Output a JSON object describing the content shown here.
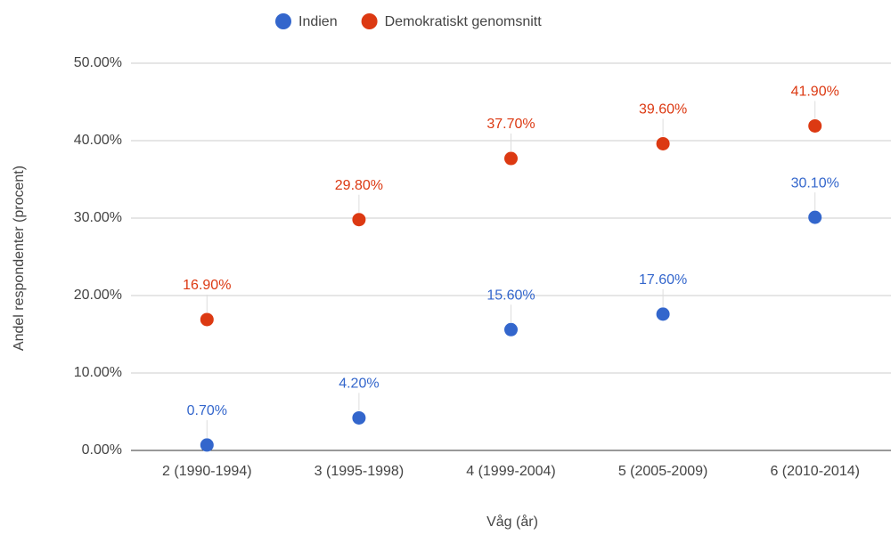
{
  "chart_data": {
    "type": "scatter",
    "categories": [
      "2 (1990-1994)",
      "3 (1995-1998)",
      "4 (1999-2004)",
      "5 (2005-2009)",
      "6 (2010-2014)"
    ],
    "series": [
      {
        "name": "Indien",
        "color": "#3366cc",
        "values": [
          0.7,
          4.2,
          15.6,
          17.6,
          30.1
        ],
        "value_labels": [
          "0.70%",
          "4.20%",
          "15.60%",
          "17.60%",
          "30.10%"
        ]
      },
      {
        "name": "Demokratiskt genomsnitt",
        "color": "#dc3912",
        "values": [
          16.9,
          29.8,
          37.7,
          39.6,
          41.9
        ],
        "value_labels": [
          "16.90%",
          "29.80%",
          "37.70%",
          "39.60%",
          "41.90%"
        ]
      }
    ],
    "x_label": "Våg (år)",
    "y_label": "Andel respondenter (procent)",
    "ylim": [
      0,
      50
    ],
    "yticks": [
      {
        "value": 0,
        "label": "0.00%"
      },
      {
        "value": 10,
        "label": "10.00%"
      },
      {
        "value": 20,
        "label": "20.00%"
      },
      {
        "value": 30,
        "label": "30.00%"
      },
      {
        "value": 40,
        "label": "40.00%"
      },
      {
        "value": 50,
        "label": "50.00%"
      }
    ],
    "grid": true,
    "legend": "top"
  }
}
